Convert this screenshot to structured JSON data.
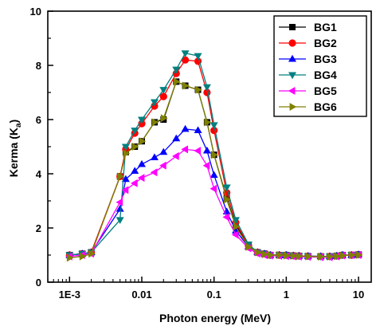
{
  "chart_data": {
    "type": "line",
    "title": "",
    "xlabel": "Photon energy (MeV)",
    "ylabel_main": "Kerma (K",
    "ylabel_sub": "a",
    "ylabel_close": ")",
    "xscale": "log",
    "xlim": [
      0.0005,
      15
    ],
    "ylim": [
      0,
      10
    ],
    "xticks": [
      0.001,
      0.01,
      0.1,
      1,
      10
    ],
    "xtick_labels": [
      "1E-3",
      "0.01",
      "0.1",
      "1",
      "10"
    ],
    "yticks": [
      0,
      2,
      4,
      6,
      8,
      10
    ],
    "ytick_labels": [
      "0",
      "2",
      "4",
      "6",
      "8",
      "10"
    ],
    "grid": false,
    "legend_position": "top-right",
    "x": [
      0.001,
      0.0015,
      0.002,
      0.005,
      0.006,
      0.008,
      0.01,
      0.015,
      0.02,
      0.03,
      0.04,
      0.06,
      0.08,
      0.1,
      0.15,
      0.2,
      0.3,
      0.4,
      0.5,
      0.6,
      0.8,
      1,
      1.25,
      1.5,
      2,
      3,
      4,
      5,
      6,
      8,
      10
    ],
    "series": [
      {
        "name": "BG1",
        "color": "#000000",
        "marker": "square",
        "values": [
          1.0,
          1.05,
          1.1,
          3.9,
          4.8,
          5.0,
          5.2,
          5.9,
          6.0,
          7.4,
          7.25,
          7.1,
          5.9,
          4.7,
          3.1,
          2.1,
          1.35,
          1.1,
          1.05,
          1.0,
          1.0,
          1.0,
          0.98,
          0.97,
          0.96,
          0.95,
          0.95,
          0.97,
          1.0,
          1.0,
          1.02
        ]
      },
      {
        "name": "BG2",
        "color": "#ff0000",
        "marker": "circle",
        "values": [
          1.0,
          1.05,
          1.1,
          3.9,
          4.9,
          5.5,
          5.85,
          6.5,
          6.85,
          7.7,
          8.2,
          8.15,
          7.0,
          5.6,
          3.3,
          2.2,
          1.35,
          1.1,
          1.05,
          1.0,
          1.0,
          1.0,
          0.98,
          0.97,
          0.96,
          0.95,
          0.95,
          0.97,
          1.0,
          1.0,
          1.02
        ]
      },
      {
        "name": "BG3",
        "color": "#0000ff",
        "marker": "triangle-up",
        "values": [
          1.0,
          1.05,
          1.1,
          2.7,
          3.8,
          4.1,
          4.35,
          4.6,
          4.8,
          5.3,
          5.65,
          5.6,
          4.85,
          3.95,
          2.6,
          1.9,
          1.3,
          1.1,
          1.05,
          1.0,
          1.0,
          1.0,
          0.98,
          0.97,
          0.96,
          0.95,
          0.95,
          0.97,
          1.0,
          1.0,
          1.02
        ]
      },
      {
        "name": "BG4",
        "color": "#008080",
        "marker": "triangle-down",
        "values": [
          1.0,
          1.05,
          1.1,
          2.3,
          5.0,
          5.6,
          6.0,
          6.65,
          7.1,
          7.85,
          8.45,
          8.35,
          7.2,
          5.8,
          3.5,
          2.3,
          1.4,
          1.1,
          1.05,
          1.0,
          1.0,
          1.0,
          0.98,
          0.97,
          0.96,
          0.95,
          0.95,
          0.97,
          1.0,
          1.0,
          1.02
        ]
      },
      {
        "name": "BG5",
        "color": "#ff00ff",
        "marker": "triangle-left",
        "values": [
          0.95,
          1.0,
          1.05,
          2.95,
          3.4,
          3.65,
          3.85,
          4.05,
          4.3,
          4.65,
          4.9,
          4.85,
          4.3,
          3.45,
          2.4,
          1.75,
          1.25,
          1.05,
          1.0,
          0.98,
          0.97,
          0.96,
          0.95,
          0.94,
          0.93,
          0.92,
          0.92,
          0.95,
          0.98,
          1.0,
          1.0
        ]
      },
      {
        "name": "BG6",
        "color": "#808000",
        "marker": "triangle-right",
        "values": [
          0.9,
          0.95,
          1.05,
          3.9,
          4.75,
          5.0,
          5.2,
          5.9,
          6.05,
          7.4,
          7.25,
          7.1,
          5.9,
          4.7,
          3.05,
          2.05,
          1.3,
          1.1,
          1.03,
          1.0,
          1.0,
          0.98,
          0.97,
          0.96,
          0.95,
          0.94,
          0.94,
          0.96,
          0.98,
          1.0,
          1.0
        ]
      }
    ]
  }
}
